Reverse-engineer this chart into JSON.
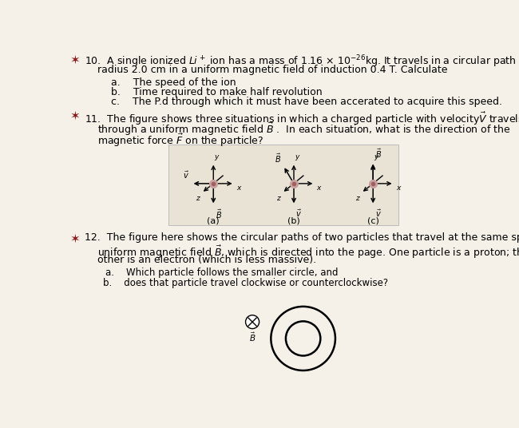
{
  "bg_color": "#f5f0e8",
  "white_box": "#ede8dc",
  "text_color": "#000000",
  "star_color": "#8B1A1A",
  "fs": 9.0,
  "fs_small": 8.5,
  "q10_line1": "10.  A single ionized $Li^+$ ion has a mass of 1.16 × 10$^{-26}$kg. It travels in a circular path of",
  "q10_line2": "radius 2.0 cm in a uniform magnetic field of induction 0.4 T. Calculate",
  "q10_a": "a.    The speed of the ion",
  "q10_b": "b.    Time required to make half revolution",
  "q10_c": "c.    The P.d through which it must have been accerated to acquire this speed.",
  "q11_line1": "11.  The figure shows three situations in which a charged particle with velocity$\\vec{V}$ travels",
  "q11_line2": "through a uniform magnetic field $\\vec{B}$ .  In each situation, what is the direction of the",
  "q11_line3": "magnetic force $\\vec{F}$ on the particle?",
  "q12_line1": "12.  The figure here shows the circular paths of two particles that travel at the same speed in a",
  "q12_line2": "uniform magnetic field $\\vec{B}$, which is directed into the page. One particle is a proton; the",
  "q12_line3": "other is an electron (which is less massive).",
  "q12_a": "a.    Which particle follows the smaller circle, and",
  "q12_b": "b.    does that particle travel clockwise or counterclockwise?",
  "diagram_captions": [
    "(a)",
    "(b)",
    "(c)"
  ]
}
